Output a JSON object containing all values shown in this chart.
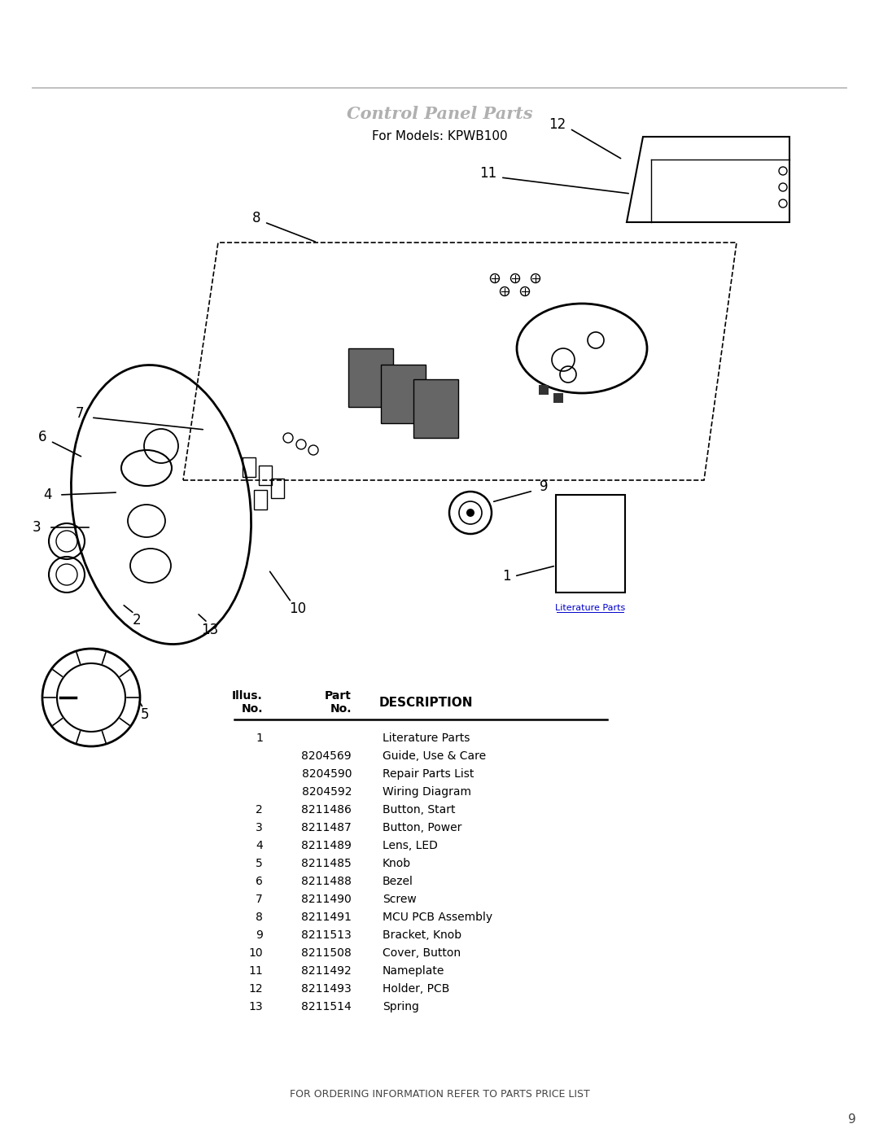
{
  "title": "Control Panel Parts",
  "subtitle": "For Models: KPWB100",
  "footer_text": "FOR ORDERING INFORMATION REFER TO PARTS PRICE LIST",
  "page_number": "9",
  "literature_label": "Literature Parts",
  "table_rows": [
    [
      "1",
      "",
      "Literature Parts"
    ],
    [
      "",
      "8204569",
      "Guide, Use & Care"
    ],
    [
      "",
      "8204590",
      "Repair Parts List"
    ],
    [
      "",
      "8204592",
      "Wiring Diagram"
    ],
    [
      "2",
      "8211486",
      "Button, Start"
    ],
    [
      "3",
      "8211487",
      "Button, Power"
    ],
    [
      "4",
      "8211489",
      "Lens, LED"
    ],
    [
      "5",
      "8211485",
      "Knob"
    ],
    [
      "6",
      "8211488",
      "Bezel"
    ],
    [
      "7",
      "8211490",
      "Screw"
    ],
    [
      "8",
      "8211491",
      "MCU PCB Assembly"
    ],
    [
      "9",
      "8211513",
      "Bracket, Knob"
    ],
    [
      "10",
      "8211508",
      "Cover, Button"
    ],
    [
      "11",
      "8211492",
      "Nameplate"
    ],
    [
      "12",
      "8211493",
      "Holder, PCB"
    ],
    [
      "13",
      "8211514",
      "Spring"
    ]
  ]
}
